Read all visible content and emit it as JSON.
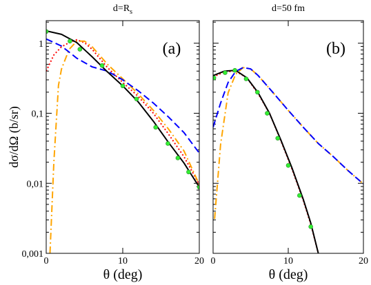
{
  "chart_data": [
    {
      "type": "line",
      "title": "d=R",
      "title_subscript": "s",
      "annotation": "(a)",
      "ylabel": "dσ/dΩ   (b/sr)",
      "xlabel": "θ   (deg)",
      "log_y": true,
      "show_ytick_labels": true,
      "xlim": [
        0,
        20
      ],
      "xticks": [
        0,
        10,
        20
      ],
      "ylim": [
        0.001,
        2.1
      ],
      "yticks": [
        {
          "value": 0.001,
          "label": "0,001"
        },
        {
          "value": 0.01,
          "label": "0,01"
        },
        {
          "value": 0.1,
          "label": "0,1"
        },
        1
      ],
      "series": [
        {
          "color": "#ff0000",
          "style": "dotted",
          "x": [
            0,
            1,
            2,
            3,
            4,
            5,
            6,
            8,
            10,
            12,
            14,
            16,
            18,
            20
          ],
          "values": [
            0.4,
            0.68,
            0.89,
            1.02,
            1.12,
            1.02,
            0.82,
            0.45,
            0.275,
            0.175,
            0.1,
            0.05,
            0.024,
            0.0096
          ]
        },
        {
          "color": "#ffa500",
          "style": "dashdot",
          "x": [
            0.5,
            1,
            1.6,
            2,
            3,
            4,
            5,
            6,
            8,
            10,
            12,
            14,
            16,
            18,
            20
          ],
          "values": [
            0.001,
            0.02,
            0.25,
            0.43,
            0.82,
            1.07,
            1.07,
            0.89,
            0.5,
            0.31,
            0.19,
            0.11,
            0.059,
            0.029,
            0.0096
          ]
        },
        {
          "color": "#0000ff",
          "style": "dashed",
          "x": [
            0,
            2,
            4,
            6,
            8,
            10,
            12,
            14,
            16,
            18,
            20
          ],
          "values": [
            1.15,
            0.91,
            0.61,
            0.46,
            0.4,
            0.3,
            0.21,
            0.14,
            0.088,
            0.053,
            0.027
          ]
        },
        {
          "color": "#000000",
          "style": "solid",
          "x": [
            0,
            2,
            4,
            6,
            8,
            10,
            12,
            14,
            16,
            18,
            20
          ],
          "values": [
            1.5,
            1.34,
            1.02,
            0.64,
            0.39,
            0.246,
            0.146,
            0.077,
            0.038,
            0.0195,
            0.0088
          ]
        },
        {
          "color": "#33ee33",
          "style": "markers",
          "x": [
            0,
            3.1,
            4.4,
            7.3,
            10,
            11.8,
            14.3,
            15.9,
            17.2,
            18.6,
            20
          ],
          "values": [
            1.47,
            1.07,
            0.82,
            0.48,
            0.246,
            0.16,
            0.063,
            0.037,
            0.023,
            0.0145,
            0.0088
          ]
        }
      ]
    },
    {
      "type": "line",
      "title": "d=50 fm",
      "annotation": "(b)",
      "xlabel": "θ   (deg)",
      "log_y": true,
      "show_ytick_labels": false,
      "xlim": [
        0,
        20
      ],
      "xticks": [
        0,
        10,
        20
      ],
      "ylim": [
        0.001,
        2.1
      ],
      "yticks": [
        0.001,
        0.01,
        0.1,
        1
      ],
      "series": [
        {
          "color": "#ff0000",
          "style": "dotted",
          "x": [
            0,
            1.5,
            3,
            4.5,
            6,
            7.5,
            9,
            10.5,
            12,
            13,
            14
          ],
          "values": [
            0.33,
            0.39,
            0.4,
            0.32,
            0.19,
            0.1,
            0.041,
            0.016,
            0.0057,
            0.0026,
            0.001
          ]
        },
        {
          "color": "#ffa500",
          "style": "dashdot",
          "x": [
            0.2,
            1,
            2,
            3,
            4,
            5,
            6,
            8,
            10,
            12,
            14,
            16,
            18,
            20
          ],
          "values": [
            0.0031,
            0.036,
            0.196,
            0.36,
            0.45,
            0.43,
            0.345,
            0.196,
            0.11,
            0.063,
            0.037,
            0.024,
            0.015,
            0.0098
          ]
        },
        {
          "color": "#0000ff",
          "style": "dashed",
          "x": [
            0,
            1,
            2,
            3,
            4,
            5,
            6,
            8,
            10,
            12,
            14,
            16,
            18,
            20
          ],
          "values": [
            0.063,
            0.14,
            0.275,
            0.395,
            0.45,
            0.43,
            0.345,
            0.196,
            0.11,
            0.063,
            0.037,
            0.024,
            0.015,
            0.0098
          ]
        },
        {
          "color": "#000000",
          "style": "solid",
          "x": [
            0,
            1.5,
            3,
            4.5,
            6,
            7.5,
            9,
            10.5,
            12,
            13,
            14
          ],
          "values": [
            0.345,
            0.4,
            0.41,
            0.32,
            0.196,
            0.1,
            0.042,
            0.0166,
            0.0059,
            0.0027,
            0.001
          ]
        },
        {
          "color": "#33ee33",
          "style": "markers",
          "x": [
            0.1,
            1.6,
            2.9,
            4.4,
            5.9,
            7.2,
            8.6,
            10,
            11.5,
            13
          ],
          "values": [
            0.32,
            0.38,
            0.41,
            0.31,
            0.2,
            0.1,
            0.044,
            0.018,
            0.0067,
            0.0024
          ]
        }
      ]
    }
  ]
}
